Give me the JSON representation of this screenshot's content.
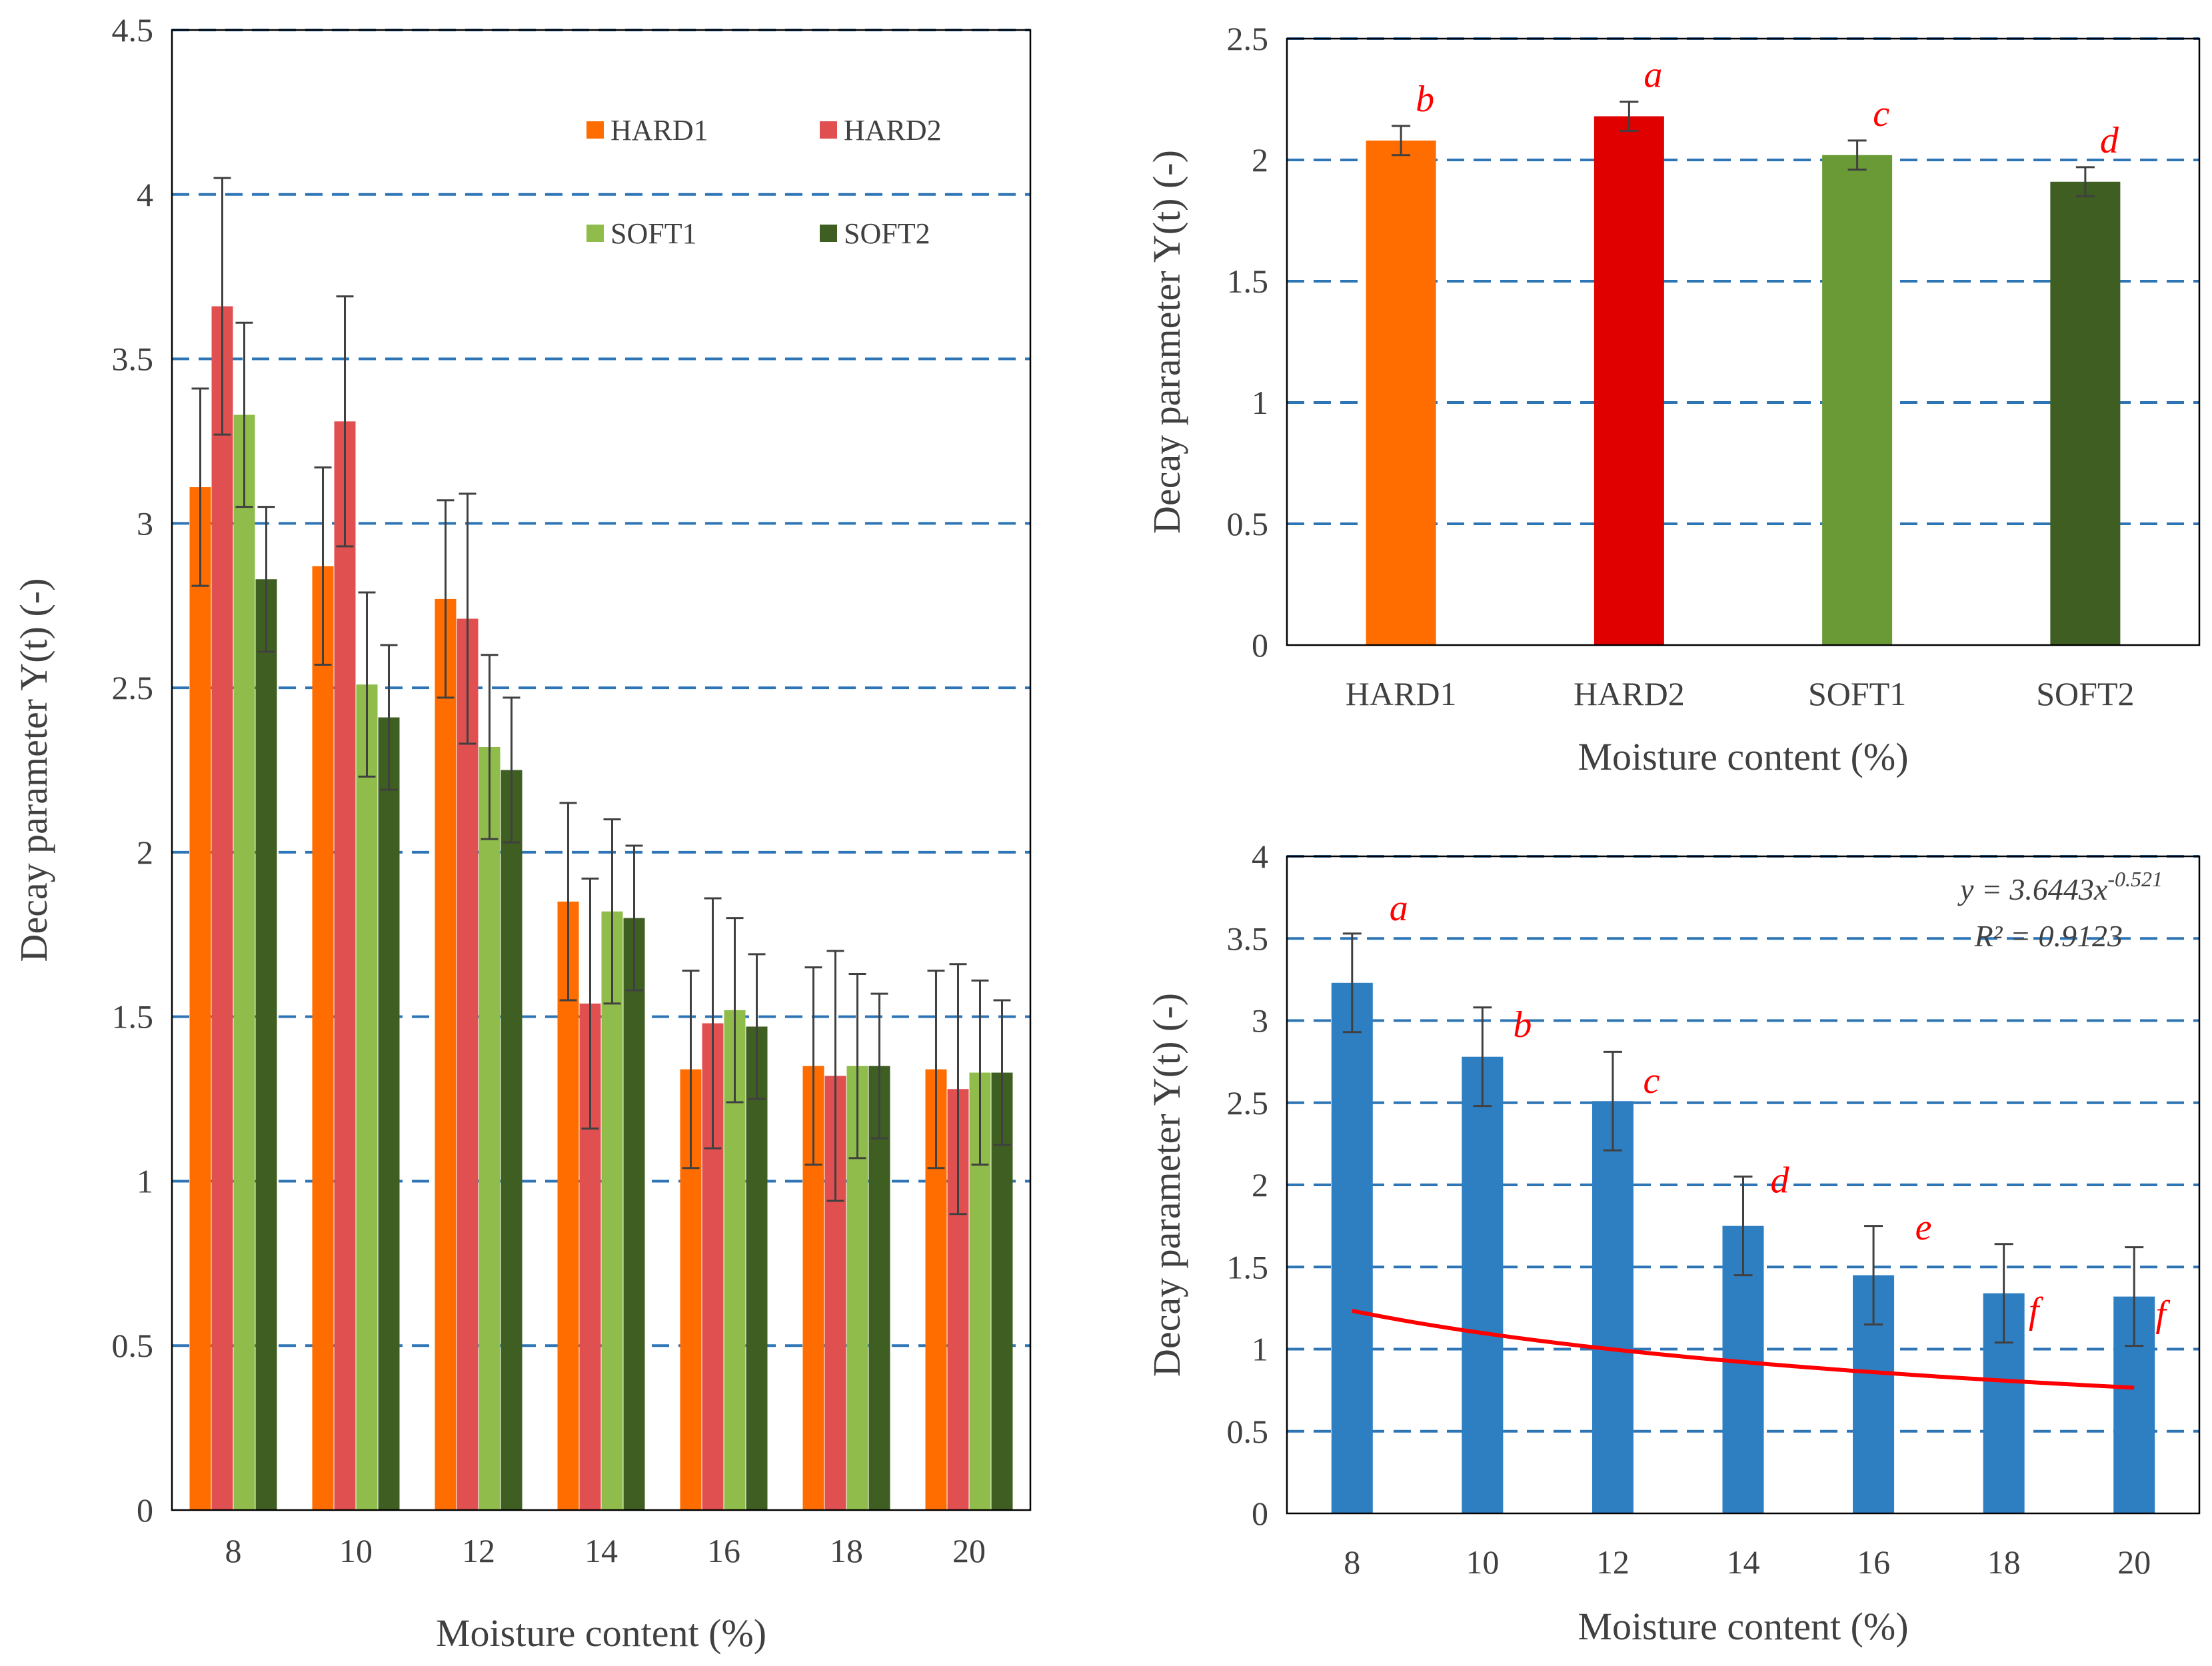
{
  "chart_data": [
    {
      "type": "bar",
      "title": "",
      "xlabel": "Moisture content (%)",
      "ylabel": "Decay parameter Y(t) (-)",
      "ylim": [
        0,
        4.5
      ],
      "yticks": [
        "0",
        "0.5",
        "1",
        "1.5",
        "2",
        "2.5",
        "3",
        "3.5",
        "4",
        "4.5"
      ],
      "grid": true,
      "legend_position": "top-right",
      "categories": [
        "8",
        "10",
        "12",
        "14",
        "16",
        "18",
        "20"
      ],
      "series": [
        {
          "name": "HARD1",
          "color": "#ff6d00",
          "values": [
            3.11,
            2.87,
            2.77,
            1.85,
            1.34,
            1.35,
            1.34
          ],
          "errors": [
            0.3,
            0.3,
            0.3,
            0.3,
            0.3,
            0.3,
            0.3
          ]
        },
        {
          "name": "HARD2",
          "color": "#e05050",
          "values": [
            3.66,
            3.31,
            2.71,
            1.54,
            1.48,
            1.32,
            1.28
          ],
          "errors": [
            0.39,
            0.38,
            0.38,
            0.38,
            0.38,
            0.38,
            0.38
          ]
        },
        {
          "name": "SOFT1",
          "color": "#8fbc4a",
          "values": [
            3.33,
            2.51,
            2.32,
            1.82,
            1.52,
            1.35,
            1.33
          ],
          "errors": [
            0.28,
            0.28,
            0.28,
            0.28,
            0.28,
            0.28,
            0.28
          ]
        },
        {
          "name": "SOFT2",
          "color": "#3f5e22",
          "values": [
            2.83,
            2.41,
            2.25,
            1.8,
            1.47,
            1.35,
            1.33
          ],
          "errors": [
            0.22,
            0.22,
            0.22,
            0.22,
            0.22,
            0.22,
            0.22
          ]
        }
      ]
    },
    {
      "type": "bar",
      "title": "",
      "xlabel": "Moisture content (%)",
      "ylabel": "Decay parameter Y(t) (-)",
      "ylim": [
        0,
        2.5
      ],
      "yticks": [
        "0",
        "0.5",
        "1",
        "1.5",
        "2",
        "2.5"
      ],
      "grid": true,
      "categories": [
        "HARD1",
        "HARD2",
        "SOFT1",
        "SOFT2"
      ],
      "values": [
        2.08,
        2.18,
        2.02,
        1.91
      ],
      "errors": [
        0.06,
        0.06,
        0.06,
        0.06
      ],
      "colors": [
        "#ff6d00",
        "#e00000",
        "#6a9a36",
        "#3f5e22"
      ],
      "letters": [
        "b",
        "a",
        "c",
        "d"
      ]
    },
    {
      "type": "bar",
      "title": "",
      "xlabel": "Moisture content (%)",
      "ylabel": "Decay parameter Y(t) (-)",
      "ylim": [
        0,
        4
      ],
      "yticks": [
        "0",
        "0.5",
        "1",
        "1.5",
        "2",
        "2.5",
        "3",
        "3.5",
        "4"
      ],
      "grid": true,
      "categories": [
        "8",
        "10",
        "12",
        "14",
        "16",
        "18",
        "20"
      ],
      "x_numeric": [
        8,
        10,
        12,
        14,
        16,
        18,
        20
      ],
      "values": [
        3.23,
        2.78,
        2.51,
        1.75,
        1.45,
        1.34,
        1.32
      ],
      "errors": [
        0.3,
        0.3,
        0.3,
        0.3,
        0.3,
        0.3,
        0.3
      ],
      "bar_color": "#2e7ec2",
      "letters": [
        "a",
        "b",
        "c",
        "d",
        "e",
        "f",
        "f"
      ],
      "trendline": {
        "type": "power",
        "a": 3.6443,
        "b": -0.521,
        "color": "#ff0000",
        "equation_prefix": "y = 3.6443x",
        "equation_exponent": "-0.521",
        "r2_label": "R² = 0.9123"
      }
    }
  ]
}
